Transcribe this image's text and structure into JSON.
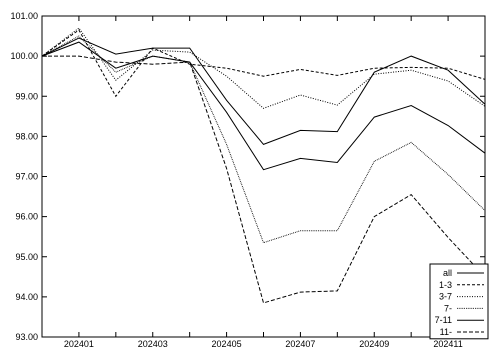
{
  "chart_data": {
    "type": "line",
    "title": "",
    "xlabel": "",
    "ylabel": "",
    "x": [
      "202312",
      "202401",
      "202402",
      "202403",
      "202404",
      "202405",
      "202406",
      "202407",
      "202408",
      "202409",
      "202410",
      "202411",
      "202412"
    ],
    "x_tick_labels": [
      "202401",
      "202403",
      "202405",
      "202407",
      "202409",
      "202411"
    ],
    "y_tick_labels": [
      "93.00",
      "94.00",
      "95.00",
      "96.00",
      "97.00",
      "98.00",
      "99.00",
      "100.00",
      "101.00"
    ],
    "ylim": [
      93,
      101
    ],
    "grid": false,
    "legend_position": "bottom-right",
    "series": [
      {
        "name": "all",
        "dash": "solid",
        "values": [
          100.0,
          100.45,
          100.05,
          100.2,
          100.2,
          98.9,
          97.8,
          98.15,
          98.12,
          99.6,
          100.0,
          99.65,
          98.8
        ]
      },
      {
        "name": "1-3",
        "dash": "dashed",
        "values": [
          100.0,
          100.65,
          99.0,
          100.2,
          99.8,
          99.7,
          99.5,
          99.67,
          99.52,
          99.7,
          99.72,
          99.7,
          99.42
        ]
      },
      {
        "name": "3-7",
        "dash": "dotted",
        "values": [
          100.0,
          100.7,
          99.4,
          100.15,
          100.1,
          99.5,
          98.7,
          99.03,
          98.78,
          99.55,
          99.65,
          99.38,
          98.75
        ]
      },
      {
        "name": "7-",
        "dash": "fine-dotted",
        "values": [
          100.0,
          100.5,
          99.6,
          100.0,
          99.85,
          97.8,
          95.35,
          95.65,
          95.65,
          97.38,
          97.85,
          97.05,
          96.15
        ]
      },
      {
        "name": "7-11",
        "dash": "solid",
        "values": [
          100.0,
          100.35,
          99.7,
          100.0,
          99.85,
          98.6,
          97.17,
          97.45,
          97.35,
          98.48,
          98.77,
          98.27,
          97.58
        ]
      },
      {
        "name": "11-",
        "dash": "long-dashed",
        "values": [
          100.0,
          100.0,
          99.85,
          99.8,
          99.85,
          97.2,
          93.85,
          94.12,
          94.15,
          96.0,
          96.55,
          95.48,
          94.5
        ]
      }
    ]
  }
}
